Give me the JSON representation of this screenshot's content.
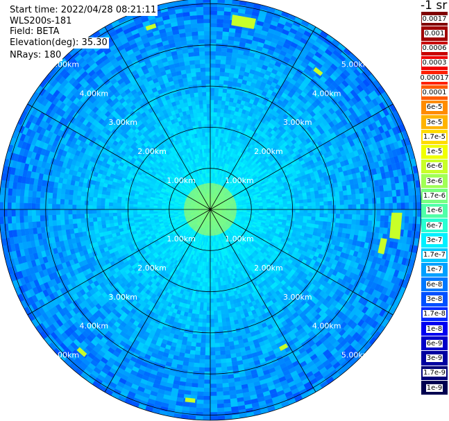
{
  "info": {
    "start_time": "Start time: 2022/04/28 08:21:11",
    "station": "WLS200s-181",
    "field": "Field: BETA",
    "elevation": "Elevation(deg): 35.30",
    "nrays": "NRays: 180"
  },
  "colorbar": {
    "unit": "-1 sr",
    "labels": [
      "0.0017",
      "0.001",
      "0.0006",
      "0.0003",
      "0.00017",
      "0.0001",
      "6e-5",
      "3e-5",
      "1.7e-5",
      "1e-5",
      "6e-6",
      "3e-6",
      "1.7e-6",
      "1e-6",
      "6e-7",
      "3e-7",
      "1.7e-7",
      "1e-7",
      "6e-8",
      "3e-8",
      "1.7e-8",
      "1e-8",
      "6e-9",
      "3e-9",
      "1.7e-9",
      "1e-9"
    ],
    "colors": [
      "#7f0000",
      "#a00000",
      "#c80000",
      "#f00000",
      "#ff2000",
      "#ff5a00",
      "#ff8c00",
      "#ffb400",
      "#ffdc00",
      "#f0ff00",
      "#c8ff28",
      "#a0ff55",
      "#78ff80",
      "#50ffa8",
      "#28ffd2",
      "#00f0ff",
      "#00c8ff",
      "#00a0ff",
      "#0078ff",
      "#0050ff",
      "#0028ff",
      "#0000f0",
      "#0000c8",
      "#0000a0",
      "#000078",
      "#000050"
    ]
  },
  "chart_data": {
    "type": "heatmap",
    "projection": "polar PPI",
    "field": "BETA",
    "rings_km": [
      1,
      2,
      3,
      4,
      5
    ],
    "ring_labels": [
      "1.00km",
      "2.00km",
      "3.00km",
      "4.00km",
      "5.00km"
    ],
    "spokes_deg": [
      0,
      30,
      60,
      90,
      120,
      150,
      180,
      210,
      240,
      270,
      300,
      330
    ],
    "max_range_km": 6.8,
    "center_value": "3e-6",
    "typical_value": "1.7e-7",
    "outer_value": "6e-8"
  }
}
